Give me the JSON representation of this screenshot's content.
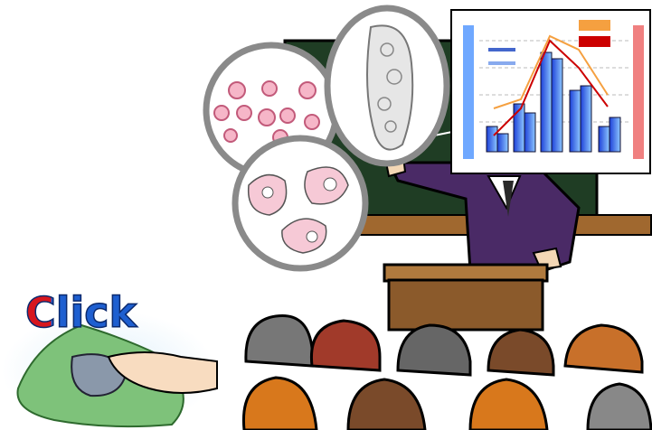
{
  "logo": {
    "label": "Click"
  }
}
